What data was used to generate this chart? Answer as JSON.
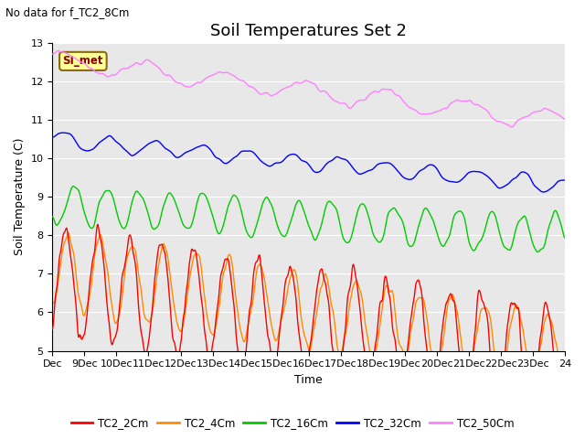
{
  "title": "Soil Temperatures Set 2",
  "subtitle": "No data for f_TC2_8Cm",
  "xlabel": "Time",
  "ylabel": "Soil Temperature (C)",
  "ylim": [
    5.0,
    13.0
  ],
  "yticks": [
    5.0,
    6.0,
    7.0,
    8.0,
    9.0,
    10.0,
    11.0,
    12.0,
    13.0
  ],
  "legend_labels": [
    "TC2_2Cm",
    "TC2_4Cm",
    "TC2_16Cm",
    "TC2_32Cm",
    "TC2_50Cm"
  ],
  "colors": {
    "TC2_2Cm": "#FF0000",
    "TC2_4Cm": "#FF8C00",
    "TC2_16Cm": "#00CC00",
    "TC2_32Cm": "#0000FF",
    "TC2_50Cm": "#FF80FF"
  },
  "annotation_label": "SI_met",
  "background_color": "#E8E8E8",
  "fig_background": "#FFFFFF",
  "n_points": 768,
  "start_day": 8,
  "end_day": 24,
  "title_fontsize": 13,
  "axis_fontsize": 9,
  "tick_fontsize": 8,
  "xtick_labels": [
    "Dec",
    "9Dec",
    "10Dec",
    "11Dec",
    "12Dec",
    "13Dec",
    "14Dec",
    "15Dec",
    "16Dec",
    "17Dec",
    "18Dec",
    "19Dec",
    "20Dec",
    "21Dec",
    "22Dec",
    "23Dec",
    "24"
  ]
}
